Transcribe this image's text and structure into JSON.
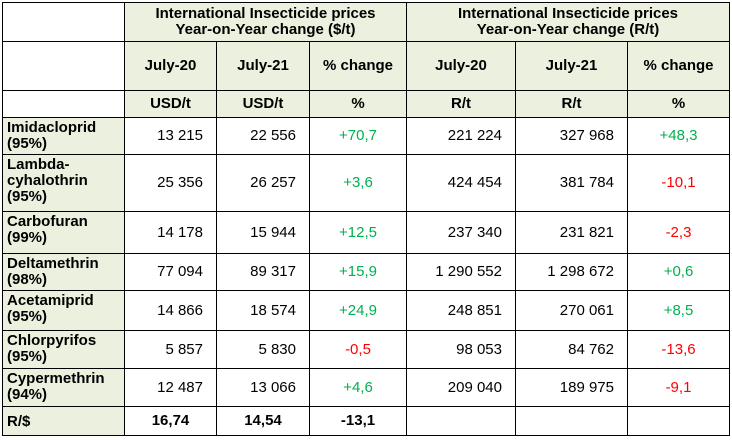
{
  "colors": {
    "header_fill": "#ebf1de",
    "positive": "#00b050",
    "negative": "#ff0000"
  },
  "header": {
    "group1_line1": "International Insecticide prices",
    "group1_line2": "Year-on-Year change ($/t)",
    "group2_line1": "International Insecticide prices",
    "group2_line2": "Year-on-Year change (R/t)",
    "columns": [
      "July-20",
      "July-21",
      "% change",
      "July-20",
      "July-21",
      "% change"
    ],
    "units": [
      "USD/t",
      "USD/t",
      "%",
      "R/t",
      "R/t",
      "%"
    ]
  },
  "rows": [
    {
      "name_line1": "Imidacloprid",
      "name_line2": "(95%)",
      "name_line3": "",
      "usd20": "13 215",
      "usd21": "22 556",
      "usd_pct": "+70,7",
      "r20": "221 224",
      "r21": "327 968",
      "r_pct": "+48,3"
    },
    {
      "name_line1": "Lambda-",
      "name_line2": "cyhalothrin",
      "name_line3": "(95%)",
      "usd20": "25 356",
      "usd21": "26 257",
      "usd_pct": "+3,6",
      "r20": "424 454",
      "r21": "381 784",
      "r_pct": "-10,1"
    },
    {
      "name_line1": "Carbofuran",
      "name_line2": "(99%)",
      "name_line3": "",
      "usd20": "14 178",
      "usd21": "15 944",
      "usd_pct": "+12,5",
      "r20": "237 340",
      "r21": "231 821",
      "r_pct": "-2,3"
    },
    {
      "name_line1": "Deltamethrin",
      "name_line2": "(98%)",
      "name_line3": "",
      "usd20": "77 094",
      "usd21": "89 317",
      "usd_pct": "+15,9",
      "r20": "1 290 552",
      "r21": "1 298 672",
      "r_pct": "+0,6"
    },
    {
      "name_line1": "Acetamiprid",
      "name_line2": "(95%)",
      "name_line3": "",
      "usd20": "14 866",
      "usd21": "18 574",
      "usd_pct": "+24,9",
      "r20": "248 851",
      "r21": "270 061",
      "r_pct": "+8,5"
    },
    {
      "name_line1": "Chlorpyrifos",
      "name_line2": "(95%)",
      "name_line3": "",
      "usd20": "5 857",
      "usd21": "5 830",
      "usd_pct": "-0,5",
      "r20": "98 053",
      "r21": "84 762",
      "r_pct": "-13,6"
    },
    {
      "name_line1": "Cypermethrin",
      "name_line2": "(94%)",
      "name_line3": "",
      "usd20": "12 487",
      "usd21": "13 066",
      "usd_pct": "+4,6",
      "r20": "209 040",
      "r21": "189 975",
      "r_pct": "-9,1"
    }
  ],
  "rate_row": {
    "label": "R/$",
    "v20": "16,74",
    "v21": "14,54",
    "pct": "-13,1"
  }
}
